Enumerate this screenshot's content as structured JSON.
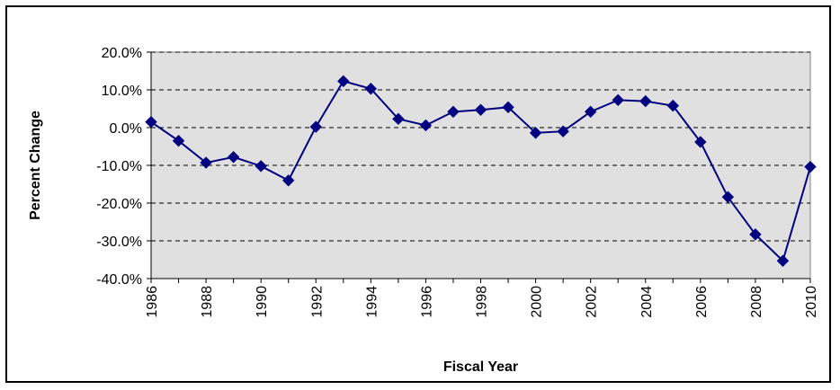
{
  "chart_data": {
    "type": "line",
    "title": "",
    "xlabel": "Fiscal Year",
    "ylabel": "Percent Change",
    "x": [
      1986,
      1987,
      1988,
      1989,
      1990,
      1991,
      1992,
      1993,
      1994,
      1995,
      1996,
      1997,
      1998,
      1999,
      2000,
      2001,
      2002,
      2003,
      2004,
      2005,
      2006,
      2007,
      2008,
      2009,
      2010
    ],
    "series": [
      {
        "name": "",
        "values": [
          1.5,
          -3.5,
          -9.3,
          -7.8,
          -10.2,
          -14.0,
          0.2,
          12.3,
          10.3,
          2.3,
          0.6,
          4.2,
          4.7,
          5.4,
          -1.4,
          -1.0,
          4.2,
          7.3,
          7.0,
          5.8,
          -3.8,
          -18.4,
          -28.3,
          -35.3,
          -10.4
        ],
        "color": "#000080"
      }
    ],
    "ylim": [
      -40,
      20
    ],
    "y_ticks": [
      20,
      10,
      0,
      -10,
      -20,
      -30,
      -40
    ],
    "y_tick_labels": [
      "20.0%",
      "10.0%",
      "0.0%",
      "-10.0%",
      "-20.0%",
      "-30.0%",
      "-40.0%"
    ],
    "x_tick_labels": [
      "1986",
      "1988",
      "1990",
      "1992",
      "1994",
      "1996",
      "1998",
      "2000",
      "2002",
      "2004",
      "2006",
      "2008",
      "2010"
    ],
    "grid": true,
    "plot_background": "#e0e0e0",
    "marker": "diamond"
  }
}
